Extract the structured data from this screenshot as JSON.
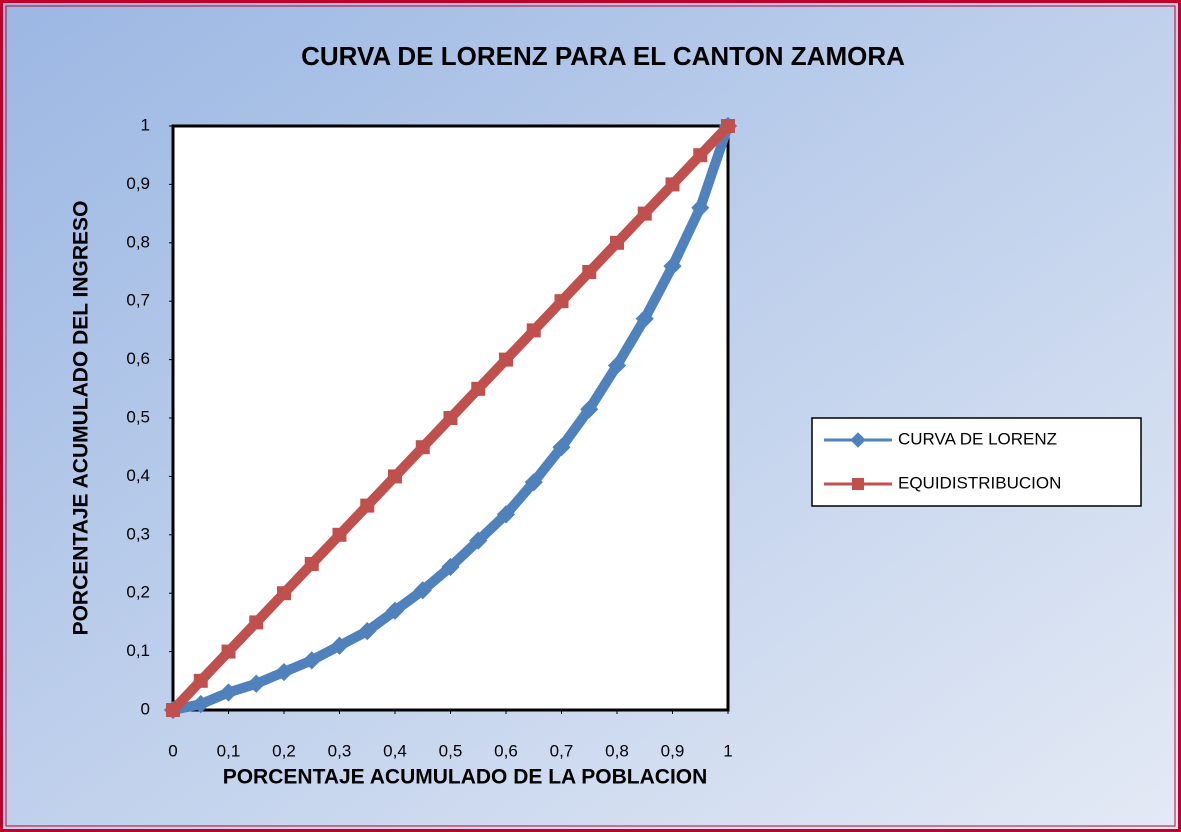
{
  "chart_data": {
    "type": "line",
    "title": "CURVA DE LORENZ PARA EL CANTON ZAMORA",
    "xlabel": "PORCENTAJE ACUMULADO DE LA POBLACION",
    "ylabel": "PORCENTAJE ACUMULADO DEL INGRESO",
    "x": [
      0,
      0.05,
      0.1,
      0.15,
      0.2,
      0.25,
      0.3,
      0.35,
      0.4,
      0.45,
      0.5,
      0.55,
      0.6,
      0.65,
      0.7,
      0.75,
      0.8,
      0.85,
      0.9,
      0.95,
      1
    ],
    "series": [
      {
        "name": "CURVA DE LORENZ",
        "color": "#4f81bd",
        "marker": "diamond",
        "values": [
          0,
          0.01,
          0.03,
          0.045,
          0.065,
          0.085,
          0.11,
          0.135,
          0.17,
          0.205,
          0.245,
          0.29,
          0.335,
          0.39,
          0.45,
          0.515,
          0.59,
          0.67,
          0.76,
          0.86,
          1
        ]
      },
      {
        "name": "EQUIDISTRIBUCION",
        "color": "#c0504d",
        "marker": "square",
        "values": [
          0,
          0.05,
          0.1,
          0.15,
          0.2,
          0.25,
          0.3,
          0.35,
          0.4,
          0.45,
          0.5,
          0.55,
          0.6,
          0.65,
          0.7,
          0.75,
          0.8,
          0.85,
          0.9,
          0.95,
          1
        ]
      }
    ],
    "xlim": [
      0,
      1
    ],
    "ylim": [
      0,
      1
    ],
    "xticks": [
      0,
      {
        "value": 0.1,
        "label": "0,1"
      },
      {
        "value": 0.2,
        "label": "0,2"
      },
      {
        "value": 0.3,
        "label": "0,3"
      },
      {
        "value": 0.4,
        "label": "0,4"
      },
      {
        "value": 0.5,
        "label": "0,5"
      },
      {
        "value": 0.6,
        "label": "0,6"
      },
      {
        "value": 0.7,
        "label": "0,7"
      },
      {
        "value": 0.8,
        "label": "0,8"
      },
      {
        "value": 0.9,
        "label": "0,9"
      },
      1
    ],
    "yticks": [
      0,
      {
        "value": 0.1,
        "label": "0,1"
      },
      {
        "value": 0.2,
        "label": "0,2"
      },
      {
        "value": 0.3,
        "label": "0,3"
      },
      {
        "value": 0.4,
        "label": "0,4"
      },
      {
        "value": 0.5,
        "label": "0,5"
      },
      {
        "value": 0.6,
        "label": "0,6"
      },
      {
        "value": 0.7,
        "label": "0,7"
      },
      {
        "value": 0.8,
        "label": "0,8"
      },
      {
        "value": 0.9,
        "label": "0,9"
      },
      1
    ],
    "grid": false,
    "legend": "right"
  }
}
